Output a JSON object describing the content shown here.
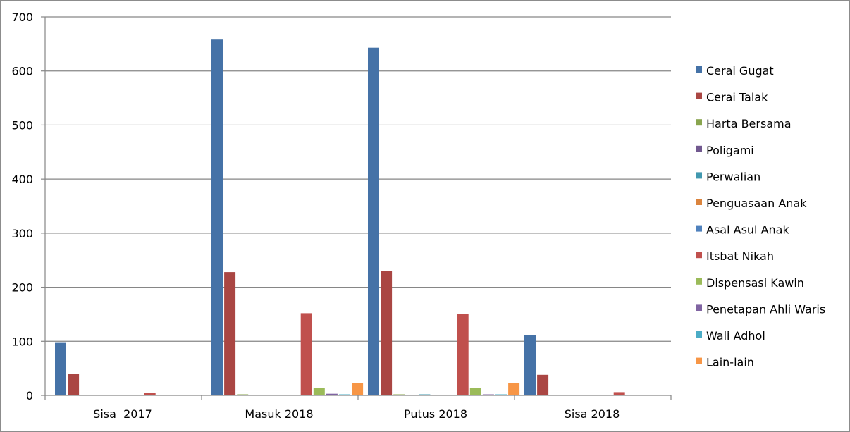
{
  "chart_data": {
    "type": "bar",
    "categories": [
      "Sisa  2017",
      "Masuk 2018",
      "Putus 2018",
      "Sisa 2018"
    ],
    "ylim": [
      0,
      700
    ],
    "yticks": [
      "0",
      "100",
      "200",
      "300",
      "400",
      "500",
      "600",
      "700"
    ],
    "grid": true,
    "legend_position": "right",
    "series": [
      {
        "name": "Cerai Gugat",
        "color": "#4572A7",
        "values": [
          97,
          658,
          643,
          112
        ]
      },
      {
        "name": "Cerai Talak",
        "color": "#AA4643",
        "values": [
          40,
          228,
          230,
          38
        ]
      },
      {
        "name": "Harta Bersama",
        "color": "#89A54E",
        "values": [
          0,
          2,
          2,
          0
        ]
      },
      {
        "name": "Poligami",
        "color": "#71588F",
        "values": [
          0,
          0,
          0,
          0
        ]
      },
      {
        "name": "Perwalian",
        "color": "#4198AF",
        "values": [
          0,
          0,
          2,
          0
        ]
      },
      {
        "name": "Penguasaan Anak",
        "color": "#DB843D",
        "values": [
          0,
          0,
          0,
          0
        ]
      },
      {
        "name": "Asal Asul Anak",
        "color": "#4F81BD",
        "values": [
          0,
          0,
          0,
          0
        ]
      },
      {
        "name": "Itsbat Nikah",
        "color": "#C0504D",
        "values": [
          5,
          152,
          150,
          6
        ]
      },
      {
        "name": "Dispensasi Kawin",
        "color": "#9BBB59",
        "values": [
          0,
          13,
          14,
          0
        ]
      },
      {
        "name": "Penetapan Ahli Waris",
        "color": "#8064A2",
        "values": [
          0,
          3,
          2,
          0
        ]
      },
      {
        "name": "Wali Adhol",
        "color": "#4BACC6",
        "values": [
          0,
          2,
          2,
          0
        ]
      },
      {
        "name": "Lain-lain",
        "color": "#F79646",
        "values": [
          0,
          23,
          23,
          0
        ]
      }
    ]
  }
}
